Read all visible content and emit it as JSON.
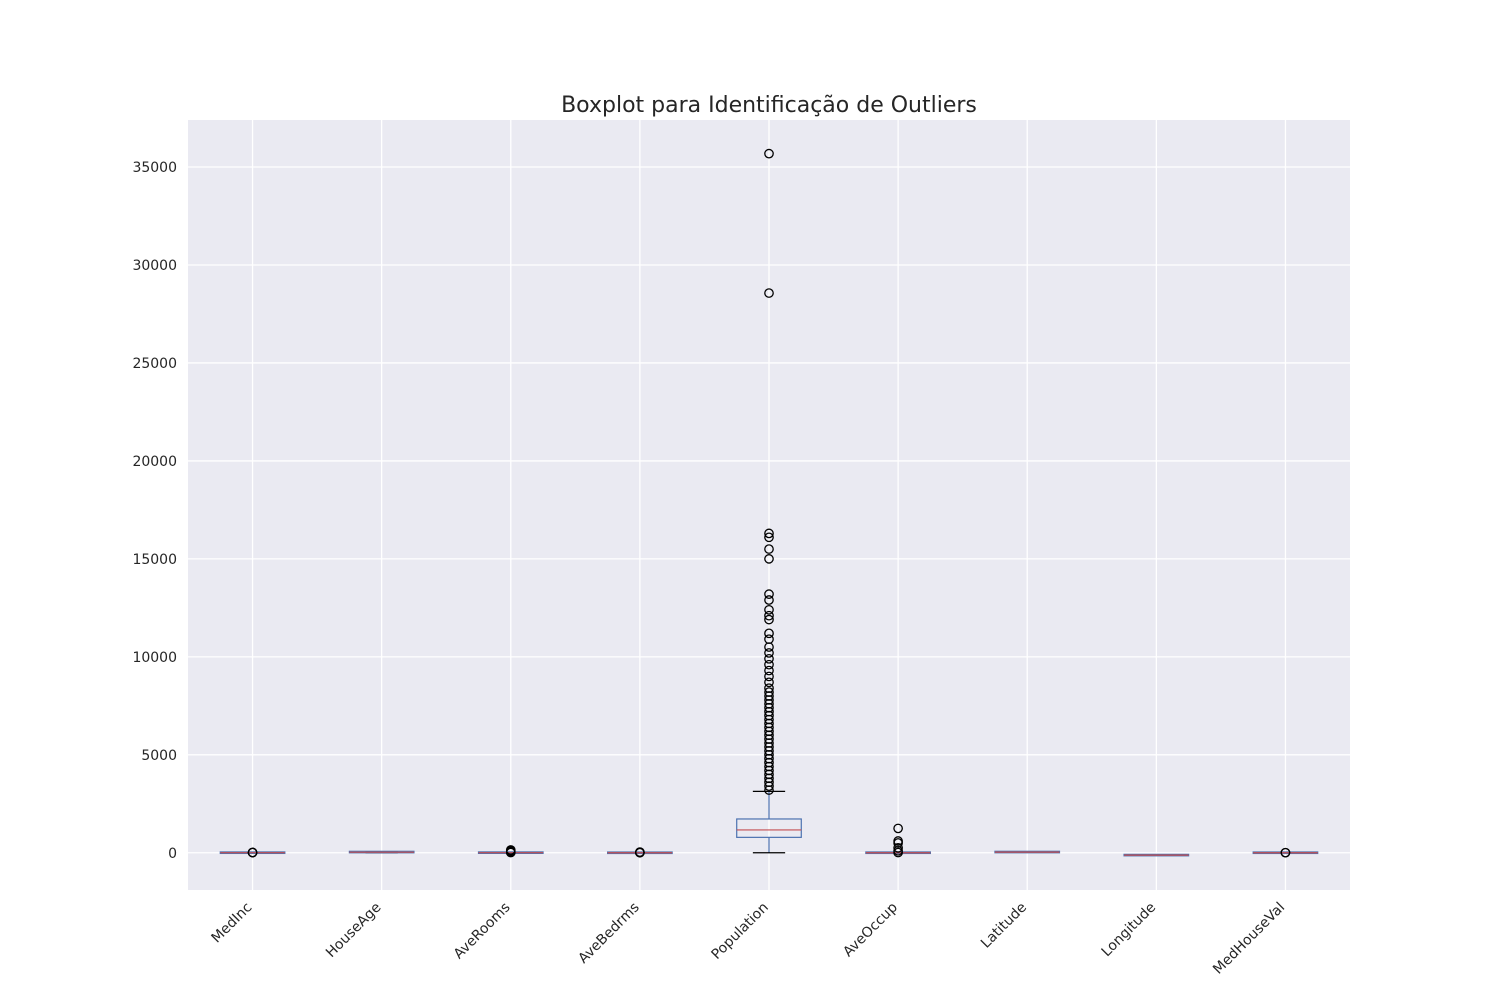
{
  "chart_data": {
    "type": "boxplot",
    "title": "Boxplot para Identificação de Outliers",
    "xlabel": "",
    "ylabel": "",
    "ylim": [
      -1900,
      37400
    ],
    "yticks": [
      0,
      5000,
      10000,
      15000,
      20000,
      25000,
      30000,
      35000
    ],
    "grid": true,
    "categories": [
      "MedInc",
      "HouseAge",
      "AveRooms",
      "AveBedrms",
      "Population",
      "AveOccup",
      "Latitude",
      "Longitude",
      "MedHouseVal"
    ],
    "boxes": [
      {
        "name": "MedInc",
        "whisker_low": 0.5,
        "q1": 2.6,
        "median": 3.5,
        "q3": 4.7,
        "whisker_high": 8.0,
        "outliers": [
          9,
          12,
          15
        ]
      },
      {
        "name": "HouseAge",
        "whisker_low": 1,
        "q1": 18,
        "median": 29,
        "q3": 37,
        "whisker_high": 52,
        "outliers": []
      },
      {
        "name": "AveRooms",
        "whisker_low": 2,
        "q1": 4.4,
        "median": 5.2,
        "q3": 6.1,
        "whisker_high": 8.5,
        "outliers": [
          10,
          40,
          90,
          142
        ]
      },
      {
        "name": "AveBedrms",
        "whisker_low": 0.9,
        "q1": 1.0,
        "median": 1.05,
        "q3": 1.1,
        "whisker_high": 1.25,
        "outliers": [
          2,
          10,
          20,
          34
        ]
      },
      {
        "name": "Population",
        "whisker_low": 3,
        "q1": 787,
        "median": 1166,
        "q3": 1725,
        "whisker_high": 3132,
        "outliers": [
          3200,
          3400,
          3600,
          3800,
          4000,
          4200,
          4400,
          4600,
          4800,
          5000,
          5200,
          5400,
          5600,
          5800,
          6000,
          6200,
          6400,
          6600,
          6800,
          7000,
          7200,
          7400,
          7600,
          7800,
          8000,
          8200,
          8400,
          8700,
          9000,
          9300,
          9600,
          9900,
          10200,
          10500,
          10900,
          11200,
          11900,
          12100,
          12400,
          12900,
          13200,
          15000,
          15500,
          16100,
          16300,
          28566,
          35682
        ]
      },
      {
        "name": "AveOccup",
        "whisker_low": 1.2,
        "q1": 2.4,
        "median": 2.8,
        "q3": 3.3,
        "whisker_high": 4.6,
        "outliers": [
          10,
          100,
          250,
          500,
          600,
          1243
        ]
      },
      {
        "name": "Latitude",
        "whisker_low": 32.5,
        "q1": 33.9,
        "median": 34.3,
        "q3": 37.7,
        "whisker_high": 42.0,
        "outliers": []
      },
      {
        "name": "Longitude",
        "whisker_low": -124.3,
        "q1": -121.8,
        "median": -118.5,
        "q3": -118.0,
        "whisker_high": -114.3,
        "outliers": []
      },
      {
        "name": "MedHouseVal",
        "whisker_low": 0.15,
        "q1": 1.2,
        "median": 1.8,
        "q3": 2.6,
        "whisker_high": 4.8,
        "outliers": [
          5.0,
          5.0001
        ]
      }
    ],
    "colors": {
      "background": "#eaeaf2",
      "grid": "#ffffff",
      "box": "#4c72b0",
      "median": "#c44e52",
      "whisker_cap": "#000000",
      "outlier_edge": "#000000"
    }
  }
}
